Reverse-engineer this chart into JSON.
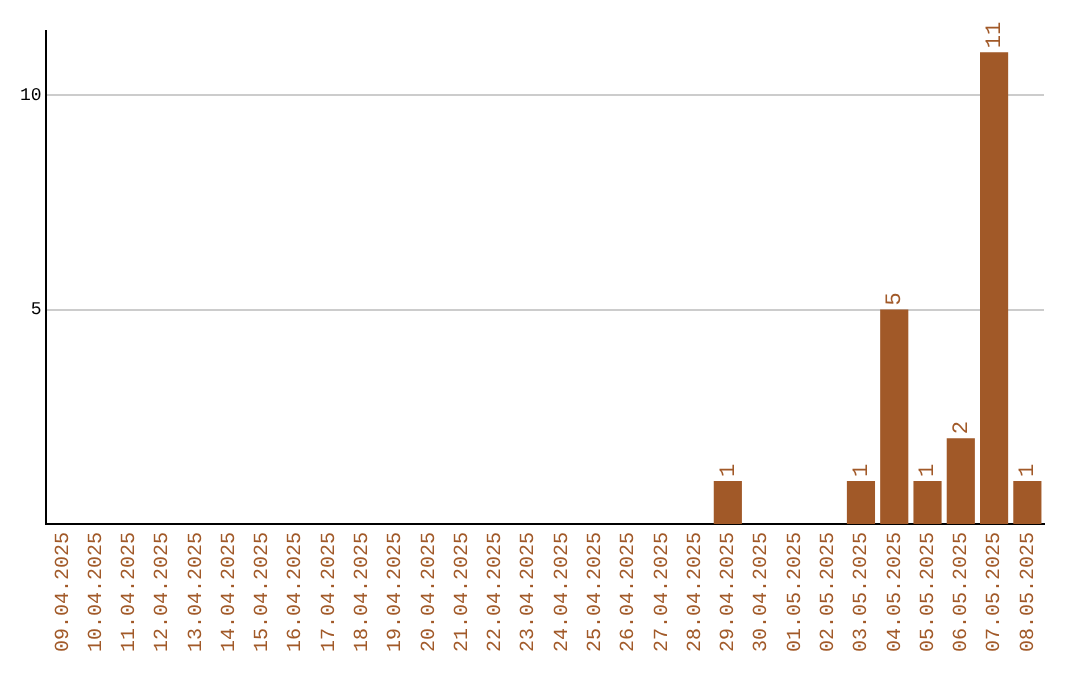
{
  "chart_data": {
    "type": "bar",
    "categories": [
      "09.04.2025",
      "10.04.2025",
      "11.04.2025",
      "12.04.2025",
      "13.04.2025",
      "14.04.2025",
      "15.04.2025",
      "16.04.2025",
      "17.04.2025",
      "18.04.2025",
      "19.04.2025",
      "20.04.2025",
      "21.04.2025",
      "22.04.2025",
      "23.04.2025",
      "24.04.2025",
      "25.04.2025",
      "26.04.2025",
      "27.04.2025",
      "28.04.2025",
      "29.04.2025",
      "30.04.2025",
      "01.05.2025",
      "02.05.2025",
      "03.05.2025",
      "04.05.2025",
      "05.05.2025",
      "06.05.2025",
      "07.05.2025",
      "08.05.2025"
    ],
    "values": [
      0,
      0,
      0,
      0,
      0,
      0,
      0,
      0,
      0,
      0,
      0,
      0,
      0,
      0,
      0,
      0,
      0,
      0,
      0,
      0,
      1,
      0,
      0,
      0,
      1,
      5,
      1,
      2,
      11,
      1
    ],
    "value_labels": [
      null,
      null,
      null,
      null,
      null,
      null,
      null,
      null,
      null,
      null,
      null,
      null,
      null,
      null,
      null,
      null,
      null,
      null,
      null,
      null,
      "1",
      null,
      null,
      null,
      "1",
      "5",
      "1",
      "2",
      "11",
      "1"
    ],
    "color": "#a15928",
    "ylim": [
      0,
      11.5
    ],
    "yticks": [
      5,
      10
    ],
    "grid": "y",
    "legend": false
  }
}
